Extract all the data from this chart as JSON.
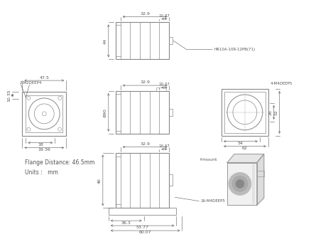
{
  "bg_color": "#ffffff",
  "line_color": "#888888",
  "dim_color": "#555555",
  "text_color": "#555555",
  "flange_dist": "Flange Distance: 46.5mm",
  "units": "Units：  mm",
  "connector_label": "HR10A-10R-12PB(71)",
  "screw_label_left": "2-M2DEEP4",
  "screw_label_right": "4-M4DEEP5",
  "screw_label_bottom": "16-M4DEEP5",
  "mount_label": "f-mount",
  "phi90": "Φ90",
  "dims": {
    "top_w1": "32.9",
    "top_w2": "10.37",
    "top_h": "44",
    "mid_w1": "32.9",
    "mid_w2": "10.37",
    "front_w": "47.5",
    "front_h1": "10.35",
    "front_h2": "18",
    "front_h3": "19.36",
    "front_h4": "4.2",
    "right_w1": "54",
    "right_w2": "62",
    "right_h1": "52",
    "right_h2": "26",
    "bot_w1": "32.9",
    "bot_w2": "10.37",
    "bot_h": "46",
    "bot_d1": "36.3",
    "bot_d2": "53.77",
    "bot_d3": "60.07"
  }
}
